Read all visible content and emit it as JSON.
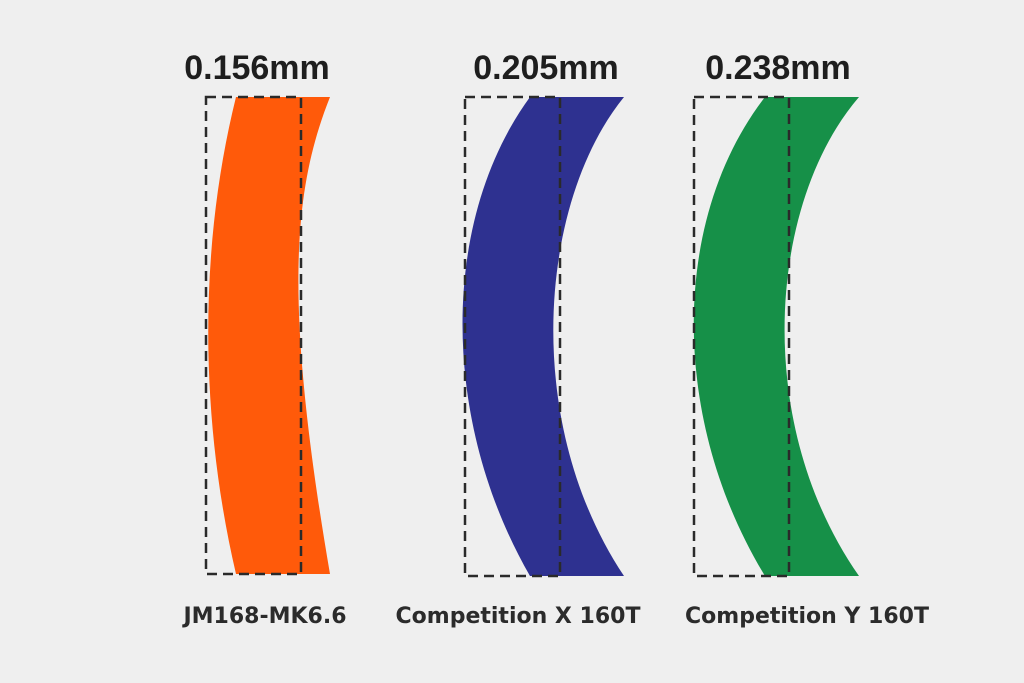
{
  "items": [
    {
      "measurement": "0.156mm",
      "label": "JM168-MK6.6",
      "color": "#ff5a0a"
    },
    {
      "measurement": "0.205mm",
      "label": "Competition X 160T",
      "color": "#2e3190"
    },
    {
      "measurement": "0.238mm",
      "label": "Competition Y 160T",
      "color": "#169048"
    }
  ]
}
